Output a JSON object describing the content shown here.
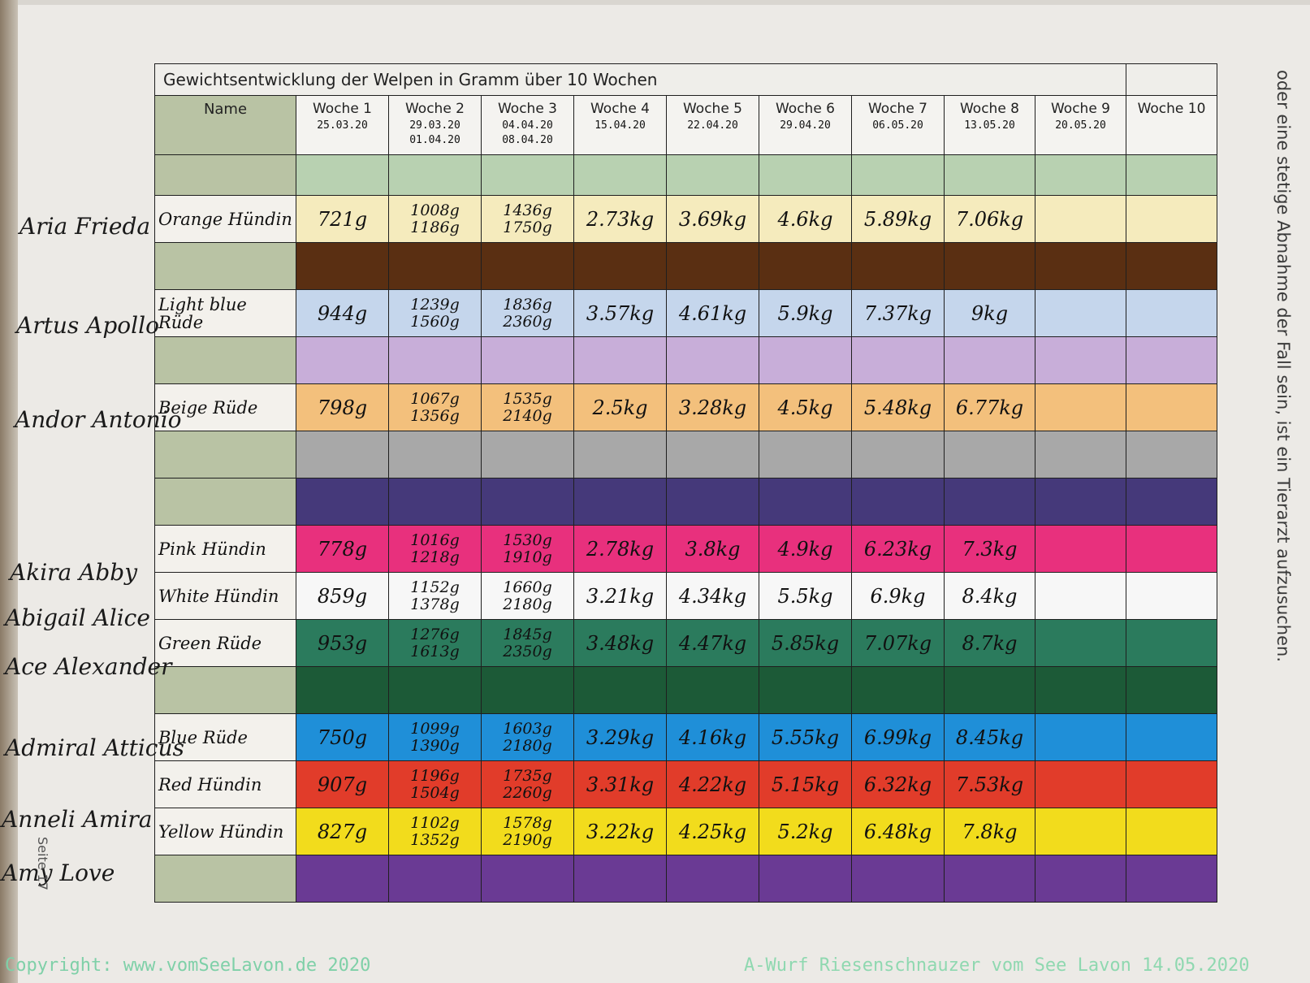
{
  "side_text": "oder eine stetige Abnahme der Fall sein, ist ein Tierarzt aufzusuchen.",
  "page_label": "Seite 17",
  "table": {
    "title": "Gewichtsentwicklung der Welpen in Gramm über 10 Wochen",
    "name_header": "Name",
    "weeks": [
      {
        "label": "Woche 1",
        "date": "25.03.20",
        "date2": ""
      },
      {
        "label": "Woche 2",
        "date": "29.03.20",
        "date2": "01.04.20"
      },
      {
        "label": "Woche 3",
        "date": "04.04.20",
        "date2": "08.04.20"
      },
      {
        "label": "Woche 4",
        "date": "15.04.20",
        "date2": ""
      },
      {
        "label": "Woche 5",
        "date": "22.04.20",
        "date2": ""
      },
      {
        "label": "Woche 6",
        "date": "29.04.20",
        "date2": ""
      },
      {
        "label": "Woche 7",
        "date": "06.05.20",
        "date2": ""
      },
      {
        "label": "Woche 8",
        "date": "13.05.20",
        "date2": ""
      },
      {
        "label": "Woche 9",
        "date": "20.05.20",
        "date2": ""
      },
      {
        "label": "Woche 10",
        "date": "",
        "date2": ""
      }
    ],
    "rows": [
      {
        "puppy": "",
        "color_label": "",
        "row_color": "#b8d1b1",
        "values": [
          "",
          "",
          "",
          "",
          "",
          "",
          "",
          "",
          "",
          ""
        ]
      },
      {
        "puppy": "Aria Frieda",
        "color_label": "Orange Hündin",
        "row_color": "#f5ebbd",
        "values": [
          "721g",
          "1008g|1186g",
          "1436g|1750g",
          "2.73kg",
          "3.69kg",
          "4.6kg",
          "5.89kg",
          "7.06kg",
          "",
          ""
        ]
      },
      {
        "puppy": "",
        "color_label": "",
        "row_color": "#5a2f12",
        "values": [
          "",
          "",
          "",
          "",
          "",
          "",
          "",
          "",
          "",
          ""
        ]
      },
      {
        "puppy": "Artus Apollo",
        "color_label": "Light blue Rüde",
        "row_color": "#c5d6ec",
        "values": [
          "944g",
          "1239g|1560g",
          "1836g|2360g",
          "3.57kg",
          "4.61kg",
          "5.9kg",
          "7.37kg",
          "9kg",
          "",
          ""
        ]
      },
      {
        "puppy": "",
        "color_label": "",
        "row_color": "#c8aed9",
        "values": [
          "",
          "",
          "",
          "",
          "",
          "",
          "",
          "",
          "",
          ""
        ]
      },
      {
        "puppy": "Andor Antonio",
        "color_label": "Beige Rüde",
        "row_color": "#f3c07c",
        "values": [
          "798g",
          "1067g|1356g",
          "1535g|2140g",
          "2.5kg",
          "3.28kg",
          "4.5kg",
          "5.48kg",
          "6.77kg",
          "",
          ""
        ]
      },
      {
        "puppy": "",
        "color_label": "",
        "row_color": "#a8a8a8",
        "values": [
          "",
          "",
          "",
          "",
          "",
          "",
          "",
          "",
          "",
          ""
        ]
      },
      {
        "puppy": "",
        "color_label": "",
        "row_color": "#45397a",
        "values": [
          "",
          "",
          "",
          "",
          "",
          "",
          "",
          "",
          "",
          ""
        ]
      },
      {
        "puppy": "Akira Abby",
        "color_label": "Pink Hündin",
        "row_color": "#e8307d",
        "values": [
          "778g",
          "1016g|1218g",
          "1530g|1910g",
          "2.78kg",
          "3.8kg",
          "4.9kg",
          "6.23kg",
          "7.3kg",
          "",
          ""
        ]
      },
      {
        "puppy": "Abigail Alice",
        "color_label": "White Hündin",
        "row_color": "#f7f7f7",
        "values": [
          "859g",
          "1152g|1378g",
          "1660g|2180g",
          "3.21kg",
          "4.34kg",
          "5.5kg",
          "6.9kg",
          "8.4kg",
          "",
          ""
        ]
      },
      {
        "puppy": "Ace Alexander",
        "color_label": "Green Rüde",
        "row_color": "#2b7b5d",
        "values": [
          "953g",
          "1276g|1613g",
          "1845g|2350g",
          "3.48kg",
          "4.47kg",
          "5.85kg",
          "7.07kg",
          "8.7kg",
          "",
          ""
        ]
      },
      {
        "puppy": "",
        "color_label": "",
        "row_color": "#1c5a37",
        "values": [
          "",
          "",
          "",
          "",
          "",
          "",
          "",
          "",
          "",
          ""
        ]
      },
      {
        "puppy": "Admiral Atticus",
        "color_label": "Blue Rüde",
        "row_color": "#1f8fd8",
        "values": [
          "750g",
          "1099g|1390g",
          "1603g|2180g",
          "3.29kg",
          "4.16kg",
          "5.55kg",
          "6.99kg",
          "8.45kg",
          "",
          ""
        ]
      },
      {
        "puppy": "Anneli Amira",
        "color_label": "Red Hündin",
        "row_color": "#e13c2a",
        "values": [
          "907g",
          "1196g|1504g",
          "1735g|2260g",
          "3.31kg",
          "4.22kg",
          "5.15kg",
          "6.32kg",
          "7.53kg",
          "",
          ""
        ]
      },
      {
        "puppy": "Amy Love",
        "color_label": "Yellow Hündin",
        "row_color": "#f2dc1c",
        "values": [
          "827g",
          "1102g|1352g",
          "1578g|2190g",
          "3.22kg",
          "4.25kg",
          "5.2kg",
          "6.48kg",
          "7.8kg",
          "",
          ""
        ]
      },
      {
        "puppy": "",
        "color_label": "",
        "row_color": "#6a3a94",
        "values": [
          "",
          "",
          "",
          "",
          "",
          "",
          "",
          "",
          "",
          ""
        ]
      }
    ]
  },
  "footer": {
    "copyright": "Copyright: www.vomSeeLavon.de 2020",
    "litter": "A-Wurf Riesenschnauzer vom See Lavon 14.05.2020"
  }
}
